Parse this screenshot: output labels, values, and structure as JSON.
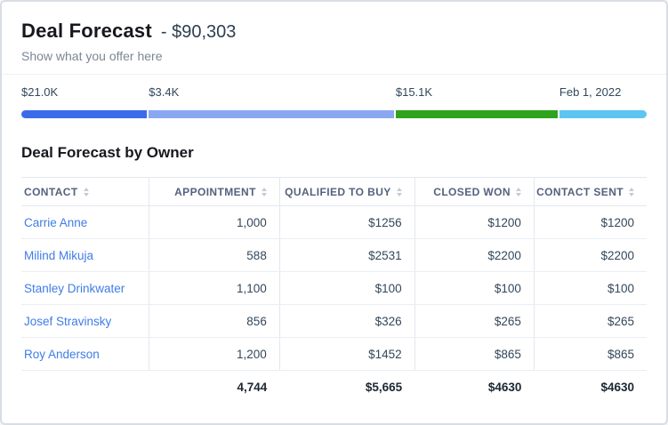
{
  "header": {
    "title": "Deal Forecast",
    "dash": "-",
    "amount": "$90,303",
    "subtitle": "Show what you offer here"
  },
  "progress": {
    "segments": [
      {
        "name": "appointment",
        "label": "$21.0K",
        "color": "#3a6cea",
        "width_pct": 20.1
      },
      {
        "name": "qualified-to-buy",
        "label": "$3.4K",
        "color": "#8aa7f1",
        "width_pct": 39.2
      },
      {
        "name": "closed-won",
        "label": "$15.1K",
        "color": "#2fa31d",
        "width_pct": 25.9
      },
      {
        "name": "close-date",
        "label": "Feb 1, 2022",
        "color": "#5cc5f2",
        "width_pct": 14.0
      }
    ]
  },
  "table": {
    "title": "Deal Forecast by Owner",
    "columns": [
      {
        "label": "CONTACT",
        "align": "left",
        "width_pct": 20.4
      },
      {
        "label": "APPOINTMENT",
        "align": "right",
        "width_pct": 20.9
      },
      {
        "label": "QUALIFIED TO BUY",
        "align": "right",
        "width_pct": 21.6
      },
      {
        "label": "CLOSED WON",
        "align": "right",
        "width_pct": 19.1
      },
      {
        "label": "CONTACT SENT",
        "align": "right",
        "width_pct": 18.0
      }
    ],
    "rows": [
      {
        "contact": "Carrie Anne",
        "values": [
          "1,000",
          "$1256",
          "$1200",
          "$1200"
        ]
      },
      {
        "contact": "Milind Mikuja",
        "values": [
          "588",
          "$2531",
          "$2200",
          "$2200"
        ]
      },
      {
        "contact": "Stanley Drinkwater",
        "values": [
          "1,100",
          "$100",
          "$100",
          "$100"
        ]
      },
      {
        "contact": "Josef Stravinsky",
        "values": [
          "856",
          "$326",
          "$265",
          "$265"
        ]
      },
      {
        "contact": "Roy Anderson",
        "values": [
          "1,200",
          "$1452",
          "$865",
          "$865"
        ]
      }
    ],
    "totals": [
      "",
      "4,744",
      "$5,665",
      "$4630",
      "$4630"
    ]
  }
}
